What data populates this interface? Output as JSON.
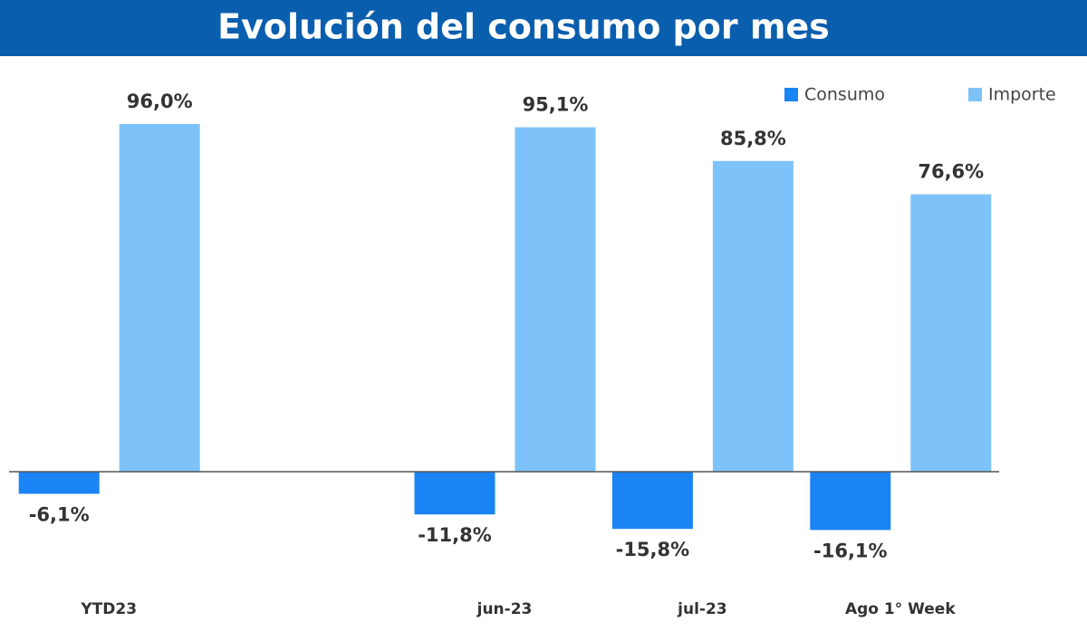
{
  "chart_data": {
    "type": "bar",
    "title": "Evolución del consumo por mes",
    "categories": [
      "YTD23",
      null,
      "jun-23",
      "jul-23",
      "Ago 1° Week"
    ],
    "series": [
      {
        "name": "Consumo",
        "color": "#1a84f5",
        "values": [
          -6.1,
          null,
          -11.8,
          -15.8,
          -16.1
        ],
        "value_labels": [
          "-6,1%",
          null,
          "-11,8%",
          "-15,8%",
          "-16,1%"
        ]
      },
      {
        "name": "Importe",
        "color": "#7dc3fa",
        "values": [
          96.0,
          null,
          95.1,
          85.8,
          76.6
        ],
        "value_labels": [
          "96,0%",
          null,
          "95,1%",
          "85,8%",
          "76,6%"
        ]
      }
    ],
    "legend": "top-right"
  }
}
